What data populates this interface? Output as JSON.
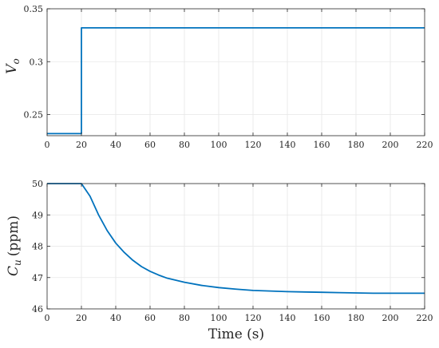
{
  "chart_data": [
    {
      "type": "line",
      "ylabel_symbol": "V",
      "ylabel_subscript": "o",
      "xlabel": "",
      "xlim": [
        0,
        220
      ],
      "ylim": [
        0.23,
        0.35
      ],
      "grid": true,
      "x_ticks": [
        0,
        20,
        40,
        60,
        80,
        100,
        120,
        140,
        160,
        180,
        200,
        220
      ],
      "y_ticks": [
        0.25,
        0.3,
        0.35
      ],
      "y_tick_labels": [
        "0.25",
        "0.3",
        "0.35"
      ],
      "color": "#0072BD",
      "series": [
        {
          "x": [
            0,
            20,
            20,
            220
          ],
          "y": [
            0.232,
            0.232,
            0.332,
            0.332
          ]
        }
      ]
    },
    {
      "type": "line",
      "ylabel_symbol": "C",
      "ylabel_subscript": "u",
      "ylabel_units": "(ppm)",
      "xlabel": "Time (s)",
      "xlim": [
        0,
        220
      ],
      "ylim": [
        46,
        50
      ],
      "grid": true,
      "x_ticks": [
        0,
        20,
        40,
        60,
        80,
        100,
        120,
        140,
        160,
        180,
        200,
        220
      ],
      "y_ticks": [
        46,
        47,
        48,
        49,
        50
      ],
      "y_tick_labels": [
        "46",
        "47",
        "48",
        "49",
        "50"
      ],
      "color": "#0072BD",
      "series": [
        {
          "x": [
            0,
            20,
            25,
            30,
            35,
            40,
            45,
            50,
            55,
            60,
            65,
            70,
            80,
            90,
            100,
            110,
            120,
            130,
            140,
            150,
            160,
            170,
            180,
            190,
            200,
            210,
            220
          ],
          "y": [
            50,
            50,
            49.6,
            49.0,
            48.5,
            48.1,
            47.8,
            47.55,
            47.35,
            47.2,
            47.08,
            46.98,
            46.85,
            46.75,
            46.68,
            46.63,
            46.59,
            46.57,
            46.55,
            46.54,
            46.53,
            46.52,
            46.51,
            46.5,
            46.5,
            46.5,
            46.5
          ]
        }
      ]
    }
  ]
}
